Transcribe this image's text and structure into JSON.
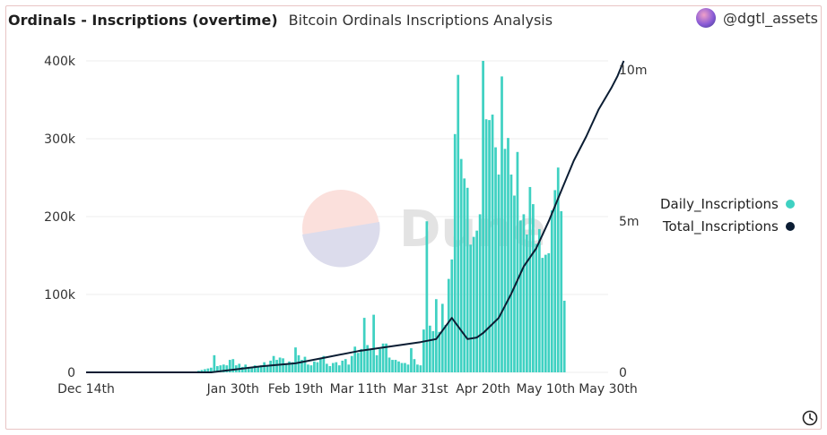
{
  "header": {
    "title": "Ordinals - Inscriptions (overtime)",
    "subtitle": "Bitcoin Ordinals Inscriptions Analysis",
    "username": "@dgtl_assets",
    "avatar_icon": "avatar-icon",
    "clock_icon": "clock-icon"
  },
  "watermark": {
    "text": "Dune"
  },
  "colors": {
    "bars": "#3fd1c2",
    "line": "#0b1d33",
    "grid": "#ececec",
    "axis_text": "#333333"
  },
  "chart_data": {
    "type": "bar",
    "title": "Ordinals - Inscriptions (overtime)",
    "x_tick_labels": [
      "Dec 14th",
      "Jan 30th",
      "Feb 19th",
      "Mar 11th",
      "Mar 31st",
      "Apr 20th",
      "May 10th",
      "May 30th"
    ],
    "x_tick_days": [
      0,
      47,
      67,
      87,
      107,
      127,
      147,
      167
    ],
    "y_left": {
      "ticks": [
        "0",
        "100k",
        "200k",
        "300k",
        "400k"
      ],
      "range": [
        0,
        400000
      ]
    },
    "y_right": {
      "ticks": [
        "0",
        "5m",
        "10m"
      ],
      "range": [
        0,
        10300000
      ]
    },
    "legend_position": "right",
    "series": [
      {
        "name": "Daily_Inscriptions",
        "type": "bar",
        "axis": "left",
        "start_day": 31,
        "values": [
          1000,
          1000,
          1000,
          1000,
          1000,
          2000,
          3000,
          4000,
          5000,
          6000,
          22000,
          8000,
          9000,
          10000,
          9000,
          16000,
          17000,
          9000,
          11000,
          7000,
          10000,
          7000,
          7000,
          9000,
          8000,
          9000,
          13000,
          9000,
          15000,
          21000,
          16000,
          19000,
          18000,
          11000,
          14000,
          13000,
          32000,
          22000,
          16000,
          20000,
          10000,
          9000,
          14000,
          13000,
          18000,
          21000,
          11000,
          8000,
          12000,
          13000,
          9000,
          15000,
          17000,
          10000,
          21000,
          33000,
          25000,
          30000,
          70000,
          35000,
          30000,
          74000,
          22000,
          30000,
          37000,
          37000,
          19000,
          16000,
          16000,
          14000,
          12000,
          12000,
          10000,
          31000,
          17000,
          10000,
          9000,
          55000,
          194000,
          60000,
          53000,
          94000,
          52000,
          88000,
          61000,
          120000,
          145000,
          306000,
          382000,
          274000,
          249000,
          237000,
          164000,
          174000,
          182000,
          203000,
          400000,
          325000,
          324000,
          331000,
          289000,
          254000,
          380000,
          287000,
          301000,
          254000,
          227000,
          283000,
          195000,
          203000,
          177000,
          238000,
          216000,
          165000,
          184000,
          147000,
          151000,
          153000,
          208000,
          234000,
          263000,
          207000,
          92000
        ]
      },
      {
        "name": "Total_Inscriptions",
        "type": "line",
        "axis": "right",
        "points": [
          [
            0,
            0
          ],
          [
            40,
            0
          ],
          [
            48,
            100000
          ],
          [
            56,
            200000
          ],
          [
            67,
            300000
          ],
          [
            77,
            500000
          ],
          [
            87,
            700000
          ],
          [
            97,
            850000
          ],
          [
            107,
            1000000
          ],
          [
            112,
            1100000
          ],
          [
            117,
            1800000
          ],
          [
            122,
            1100000
          ],
          [
            125,
            1150000
          ],
          [
            127,
            1300000
          ],
          [
            132,
            1800000
          ],
          [
            136,
            2600000
          ],
          [
            140,
            3500000
          ],
          [
            144,
            4100000
          ],
          [
            148,
            5000000
          ],
          [
            152,
            6000000
          ],
          [
            156,
            7000000
          ],
          [
            160,
            7800000
          ],
          [
            164,
            8700000
          ],
          [
            168,
            9400000
          ],
          [
            170,
            9800000
          ],
          [
            172,
            10300000
          ]
        ]
      }
    ]
  },
  "legend": {
    "items": [
      {
        "label": "Daily_Inscriptions",
        "color": "#3fd1c2"
      },
      {
        "label": "Total_Inscriptions",
        "color": "#0b1d33"
      }
    ]
  }
}
